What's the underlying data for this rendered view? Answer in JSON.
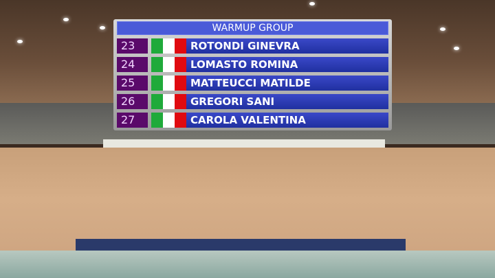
{
  "header": {
    "title": "WARMUP GROUP"
  },
  "colors": {
    "header": "#4a5ad8",
    "number_box": "#5a0a6a",
    "name_bar": "#2a38b8",
    "flag": [
      "#1faa3a",
      "#ffffff",
      "#e00a10"
    ]
  },
  "entries": [
    {
      "number": "23",
      "flag_icon": "italy-flag-icon",
      "name": "ROTONDI GINEVRA"
    },
    {
      "number": "24",
      "flag_icon": "italy-flag-icon",
      "name": "LOMASTO ROMINA"
    },
    {
      "number": "25",
      "flag_icon": "italy-flag-icon",
      "name": "MATTEUCCI MATILDE"
    },
    {
      "number": "26",
      "flag_icon": "italy-flag-icon",
      "name": "GREGORI SANI"
    },
    {
      "number": "27",
      "flag_icon": "italy-flag-icon",
      "name": "CAROLA VALENTINA"
    }
  ]
}
